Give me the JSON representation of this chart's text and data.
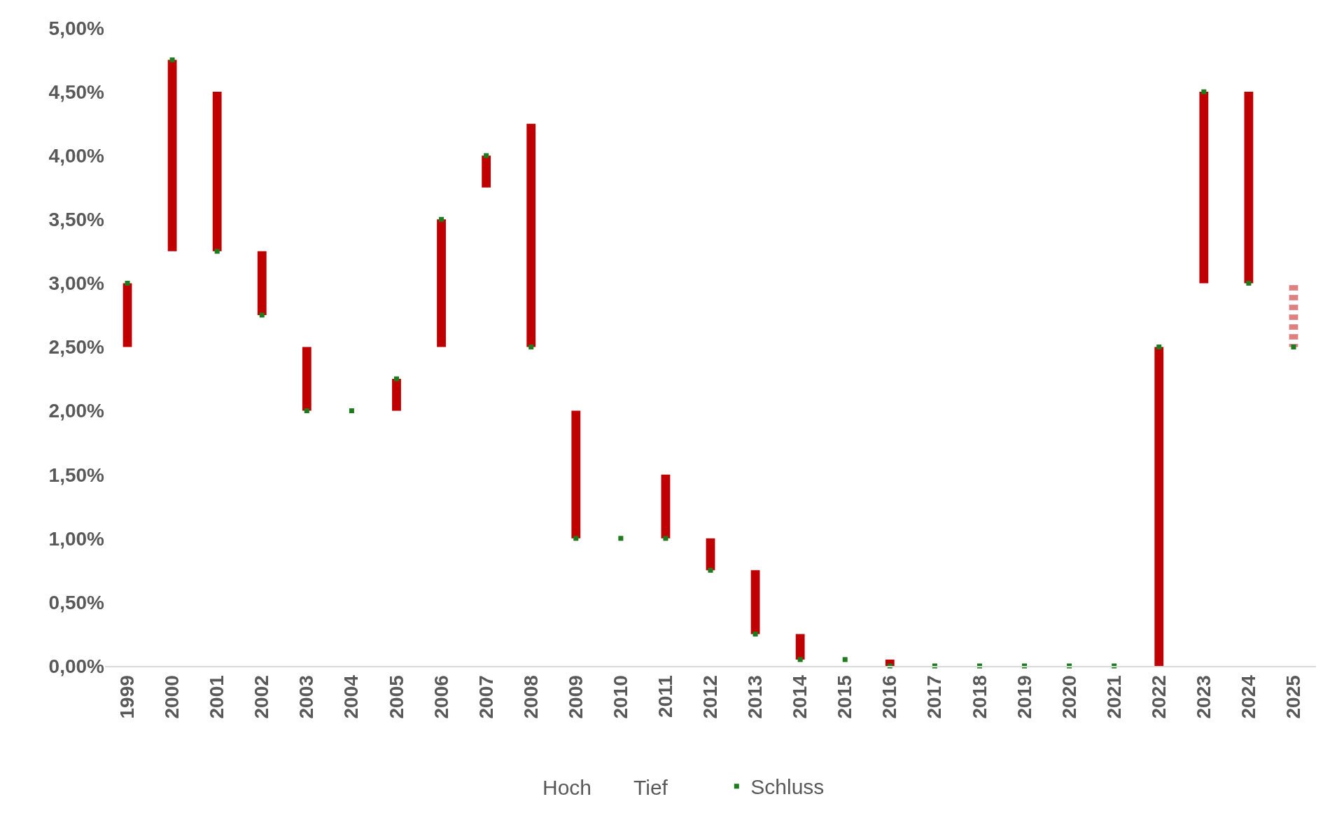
{
  "chart_data": {
    "type": "bar",
    "categories": [
      "1999",
      "2000",
      "2001",
      "2002",
      "2003",
      "2004",
      "2005",
      "2006",
      "2007",
      "2008",
      "2009",
      "2010",
      "2011",
      "2012",
      "2013",
      "2014",
      "2015",
      "2016",
      "2017",
      "2018",
      "2019",
      "2020",
      "2021",
      "2022",
      "2023",
      "2024",
      "2025"
    ],
    "series": [
      {
        "color": "#c00000",
        "base": [
          2.5,
          3.25,
          3.25,
          2.75,
          2.0,
          null,
          2.0,
          2.5,
          3.75,
          2.5,
          1.0,
          null,
          1.0,
          0.75,
          0.25,
          0.05,
          null,
          0,
          null,
          null,
          null,
          null,
          null,
          0,
          3.0,
          3.0,
          null
        ],
        "values": [
          0.5,
          1.5,
          1.25,
          0.5,
          0.5,
          null,
          0.25,
          1.0,
          0.25,
          1.75,
          1.0,
          null,
          0.5,
          0.25,
          0.5,
          0.2,
          null,
          0.05,
          null,
          null,
          null,
          null,
          null,
          2.5,
          1.5,
          1.5,
          null
        ]
      },
      {
        "color": "#c00000",
        "line_style": "dotted",
        "base": [
          null,
          null,
          null,
          null,
          null,
          null,
          null,
          null,
          null,
          null,
          null,
          null,
          null,
          null,
          null,
          null,
          null,
          null,
          null,
          null,
          null,
          null,
          null,
          null,
          null,
          null,
          2.5
        ],
        "values": [
          null,
          null,
          null,
          null,
          null,
          null,
          null,
          null,
          null,
          null,
          null,
          null,
          null,
          null,
          null,
          null,
          null,
          null,
          null,
          null,
          null,
          null,
          null,
          null,
          null,
          null,
          0.5
        ]
      },
      {
        "type": "scatter",
        "name": "Schluss",
        "marker": "square",
        "color": "#1e7b1e",
        "values": [
          3.0,
          4.75,
          3.25,
          2.75,
          2.0,
          2.0,
          2.25,
          3.5,
          4.0,
          2.5,
          1.0,
          1.0,
          1.0,
          0.75,
          0.25,
          0.05,
          0.05,
          0,
          0,
          0,
          0,
          0,
          0,
          2.5,
          4.5,
          3.0,
          2.5
        ]
      }
    ],
    "annotations": [
      "Hoch",
      "Tief"
    ],
    "ylim": [
      0,
      5
    ],
    "yticks": [
      {
        "value": 0,
        "label": "0,00%"
      },
      {
        "value": 0.5,
        "label": "0,50%"
      },
      {
        "value": 1,
        "label": "1,00%"
      },
      {
        "value": 1.5,
        "label": "1,50%"
      },
      {
        "value": 2,
        "label": "2,00%"
      },
      {
        "value": 2.5,
        "label": "2,50%"
      },
      {
        "value": 3,
        "label": "3,00%"
      },
      {
        "value": 3.5,
        "label": "3,50%"
      },
      {
        "value": 4,
        "label": "4,00%"
      },
      {
        "value": 4.5,
        "label": "4,50%"
      },
      {
        "value": 5,
        "label": "5,00%"
      }
    ],
    "grid": false,
    "legend": "bottom"
  }
}
